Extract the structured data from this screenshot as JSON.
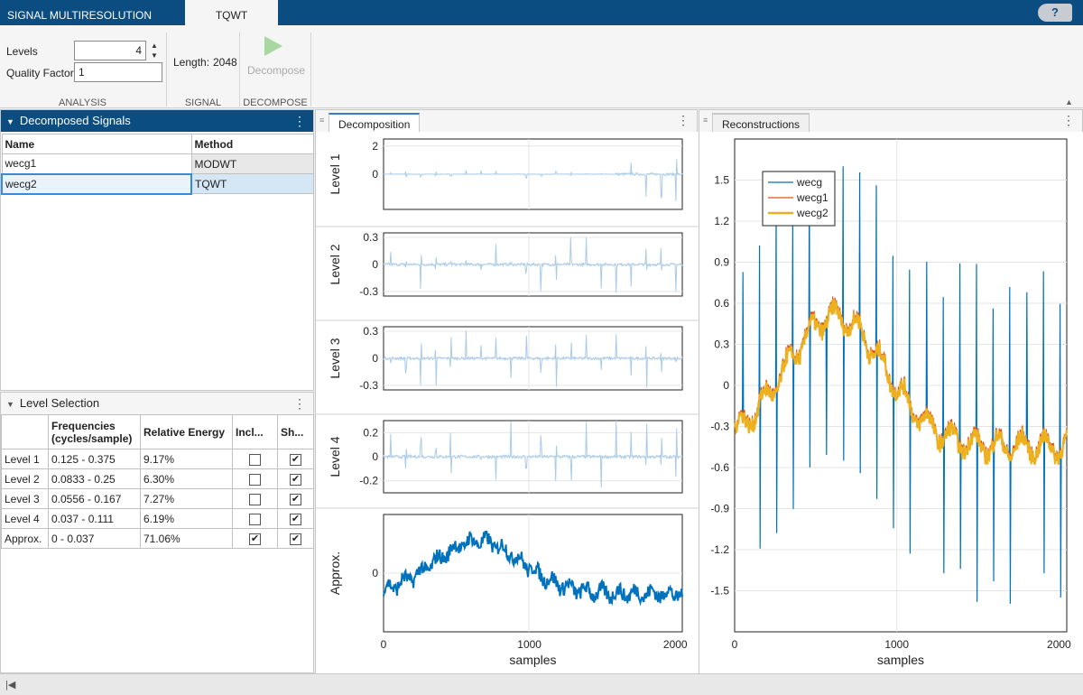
{
  "titlebar": {
    "app_tab": "SIGNAL MULTIRESOLUTION ANALYZER",
    "active_tab": "TQWT",
    "help": "?"
  },
  "ribbon": {
    "levels_label": "Levels",
    "levels_value": "4",
    "quality_label": "Quality Factor",
    "quality_value": "1",
    "length_label": "Length:",
    "length_value": "2048",
    "decompose_label": "Decompose",
    "sections": {
      "analysis": "ANALYSIS",
      "signal": "SIGNAL",
      "decompose": "DECOMPOSE"
    }
  },
  "decomposed_panel": {
    "title": "Decomposed Signals",
    "columns": [
      "Name",
      "Method"
    ],
    "rows": [
      {
        "name": "wecg1",
        "method": "MODWT"
      },
      {
        "name": "wecg2",
        "method": "TQWT"
      }
    ]
  },
  "level_panel": {
    "title": "Level Selection",
    "columns": [
      "",
      "Frequencies (cycles/sample)",
      "Relative Energy",
      "Incl...",
      "Sh..."
    ],
    "rows": [
      {
        "level": "Level 1",
        "freq": "0.125 - 0.375",
        "energy": "9.17%",
        "include": false,
        "show": true
      },
      {
        "level": "Level 2",
        "freq": "0.0833 - 0.25",
        "energy": "6.30%",
        "include": false,
        "show": true
      },
      {
        "level": "Level 3",
        "freq": "0.0556 - 0.167",
        "energy": "7.27%",
        "include": false,
        "show": true
      },
      {
        "level": "Level 4",
        "freq": "0.037 - 0.111",
        "energy": "6.19%",
        "include": false,
        "show": true
      },
      {
        "level": "Approx.",
        "freq": "0 - 0.037",
        "energy": "71.06%",
        "include": true,
        "show": true
      }
    ]
  },
  "decomposition": {
    "tab": "Decomposition",
    "xlabel": "samples",
    "xticks": [
      "0",
      "1000",
      "2000"
    ],
    "plots": [
      {
        "ylabel": "Level 1",
        "yticks": [
          "2",
          "0"
        ]
      },
      {
        "ylabel": "Level 2",
        "yticks": [
          "0.3",
          "0",
          "-0.3"
        ]
      },
      {
        "ylabel": "Level 3",
        "yticks": [
          "0.3",
          "0",
          "-0.3"
        ]
      },
      {
        "ylabel": "Level 4",
        "yticks": [
          "0.2",
          "0",
          "-0.2"
        ]
      },
      {
        "ylabel": "Approx.",
        "yticks": [
          "0"
        ]
      }
    ]
  },
  "reconstructions": {
    "tab": "Reconstructions",
    "xlabel": "samples",
    "xticks": [
      "0",
      "1000",
      "2000"
    ],
    "yticks": [
      "1.5",
      "1.2",
      "0.9",
      "0.6",
      "0.3",
      "0",
      "-0.3",
      "-0.6",
      "-0.9",
      "-1.2",
      "-1.5"
    ],
    "legend": [
      "wecg",
      "wecg1",
      "wecg2"
    ]
  },
  "chart_data": [
    {
      "type": "line",
      "title": "",
      "ylabel": "Level 1",
      "xlabel": "",
      "xlim": [
        0,
        2048
      ],
      "ylim": [
        -2.5,
        2.5
      ],
      "series": [
        {
          "values": "detail coefficients, mostly near 0 with spikes up to ~2 near x=1600-2000"
        }
      ]
    },
    {
      "type": "line",
      "title": "",
      "ylabel": "Level 2",
      "xlabel": "",
      "xlim": [
        0,
        2048
      ],
      "ylim": [
        -0.35,
        0.35
      ],
      "series": [
        {
          "values": "periodic spikes every ~100 samples, amplitude ~0.3"
        }
      ]
    },
    {
      "type": "line",
      "title": "",
      "ylabel": "Level 3",
      "xlabel": "",
      "xlim": [
        0,
        2048
      ],
      "ylim": [
        -0.35,
        0.35
      ],
      "series": [
        {
          "values": "periodic spikes every ~100 samples, amplitude ~0.3"
        }
      ]
    },
    {
      "type": "line",
      "title": "",
      "ylabel": "Level 4",
      "xlabel": "",
      "xlim": [
        0,
        2048
      ],
      "ylim": [
        -0.3,
        0.3
      ],
      "series": [
        {
          "values": "periodic spikes every ~100 samples, amplitude ~0.2"
        }
      ]
    },
    {
      "type": "line",
      "title": "",
      "ylabel": "Approx.",
      "xlabel": "samples",
      "xlim": [
        0,
        2048
      ],
      "ylim": [
        -1,
        1
      ],
      "series": [
        {
          "values": "smooth baseline wander peaking near x=600"
        }
      ]
    },
    {
      "type": "line",
      "title": "",
      "xlabel": "samples",
      "ylabel": "",
      "xlim": [
        0,
        2048
      ],
      "ylim": [
        -1.8,
        1.8
      ],
      "legend": "top-left",
      "series": [
        {
          "name": "wecg",
          "color": "#0072bd"
        },
        {
          "name": "wecg1",
          "color": "#d95319"
        },
        {
          "name": "wecg2",
          "color": "#edb120"
        }
      ]
    }
  ]
}
